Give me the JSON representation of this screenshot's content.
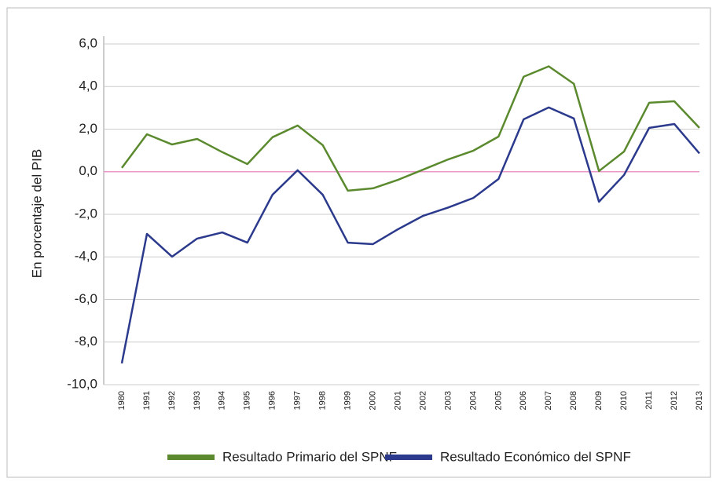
{
  "chart_data": {
    "type": "line",
    "y_label": "En porcentaje del PIB",
    "categories": [
      "1980",
      "1991",
      "1992",
      "1993",
      "1994",
      "1995",
      "1996",
      "1997",
      "1998",
      "1999",
      "2000",
      "2001",
      "2002",
      "2003",
      "2004",
      "2005",
      "2006",
      "2007",
      "2008",
      "2009",
      "2010",
      "2011",
      "2012",
      "2013"
    ],
    "series": [
      {
        "name": "Resultado Primario del SPNF",
        "color": "#5b8a2e",
        "values": [
          0.18,
          1.76,
          1.28,
          1.54,
          0.92,
          0.36,
          1.62,
          2.17,
          1.25,
          -0.89,
          -0.78,
          -0.38,
          0.1,
          0.58,
          0.99,
          1.65,
          4.46,
          4.95,
          4.13,
          0.03,
          0.95,
          3.24,
          3.31,
          2.06
        ]
      },
      {
        "name": "Resultado Económico del SPNF",
        "color": "#2b3a8c",
        "values": [
          -9.0,
          -2.92,
          -3.99,
          -3.14,
          -2.85,
          -3.33,
          -1.08,
          0.07,
          -1.08,
          -3.33,
          -3.4,
          -2.7,
          -2.07,
          -1.68,
          -1.23,
          -0.34,
          2.46,
          3.02,
          2.5,
          -1.41,
          -0.15,
          2.06,
          2.24,
          0.86
        ]
      }
    ],
    "ylim": [
      -10,
      6
    ],
    "yticks": [
      {
        "value": -10,
        "label": "-10,0"
      },
      {
        "value": -8,
        "label": "-8,0"
      },
      {
        "value": -6,
        "label": "-6,0"
      },
      {
        "value": -4,
        "label": "-4,0"
      },
      {
        "value": -2,
        "label": "-2,0"
      },
      {
        "value": 0,
        "label": "0,0"
      },
      {
        "value": 2,
        "label": "2,0"
      },
      {
        "value": 4,
        "label": "4,0"
      },
      {
        "value": 6,
        "label": "6,0"
      }
    ],
    "grid": true,
    "zero_line_color": "#e899c8",
    "legend": "bottom"
  }
}
